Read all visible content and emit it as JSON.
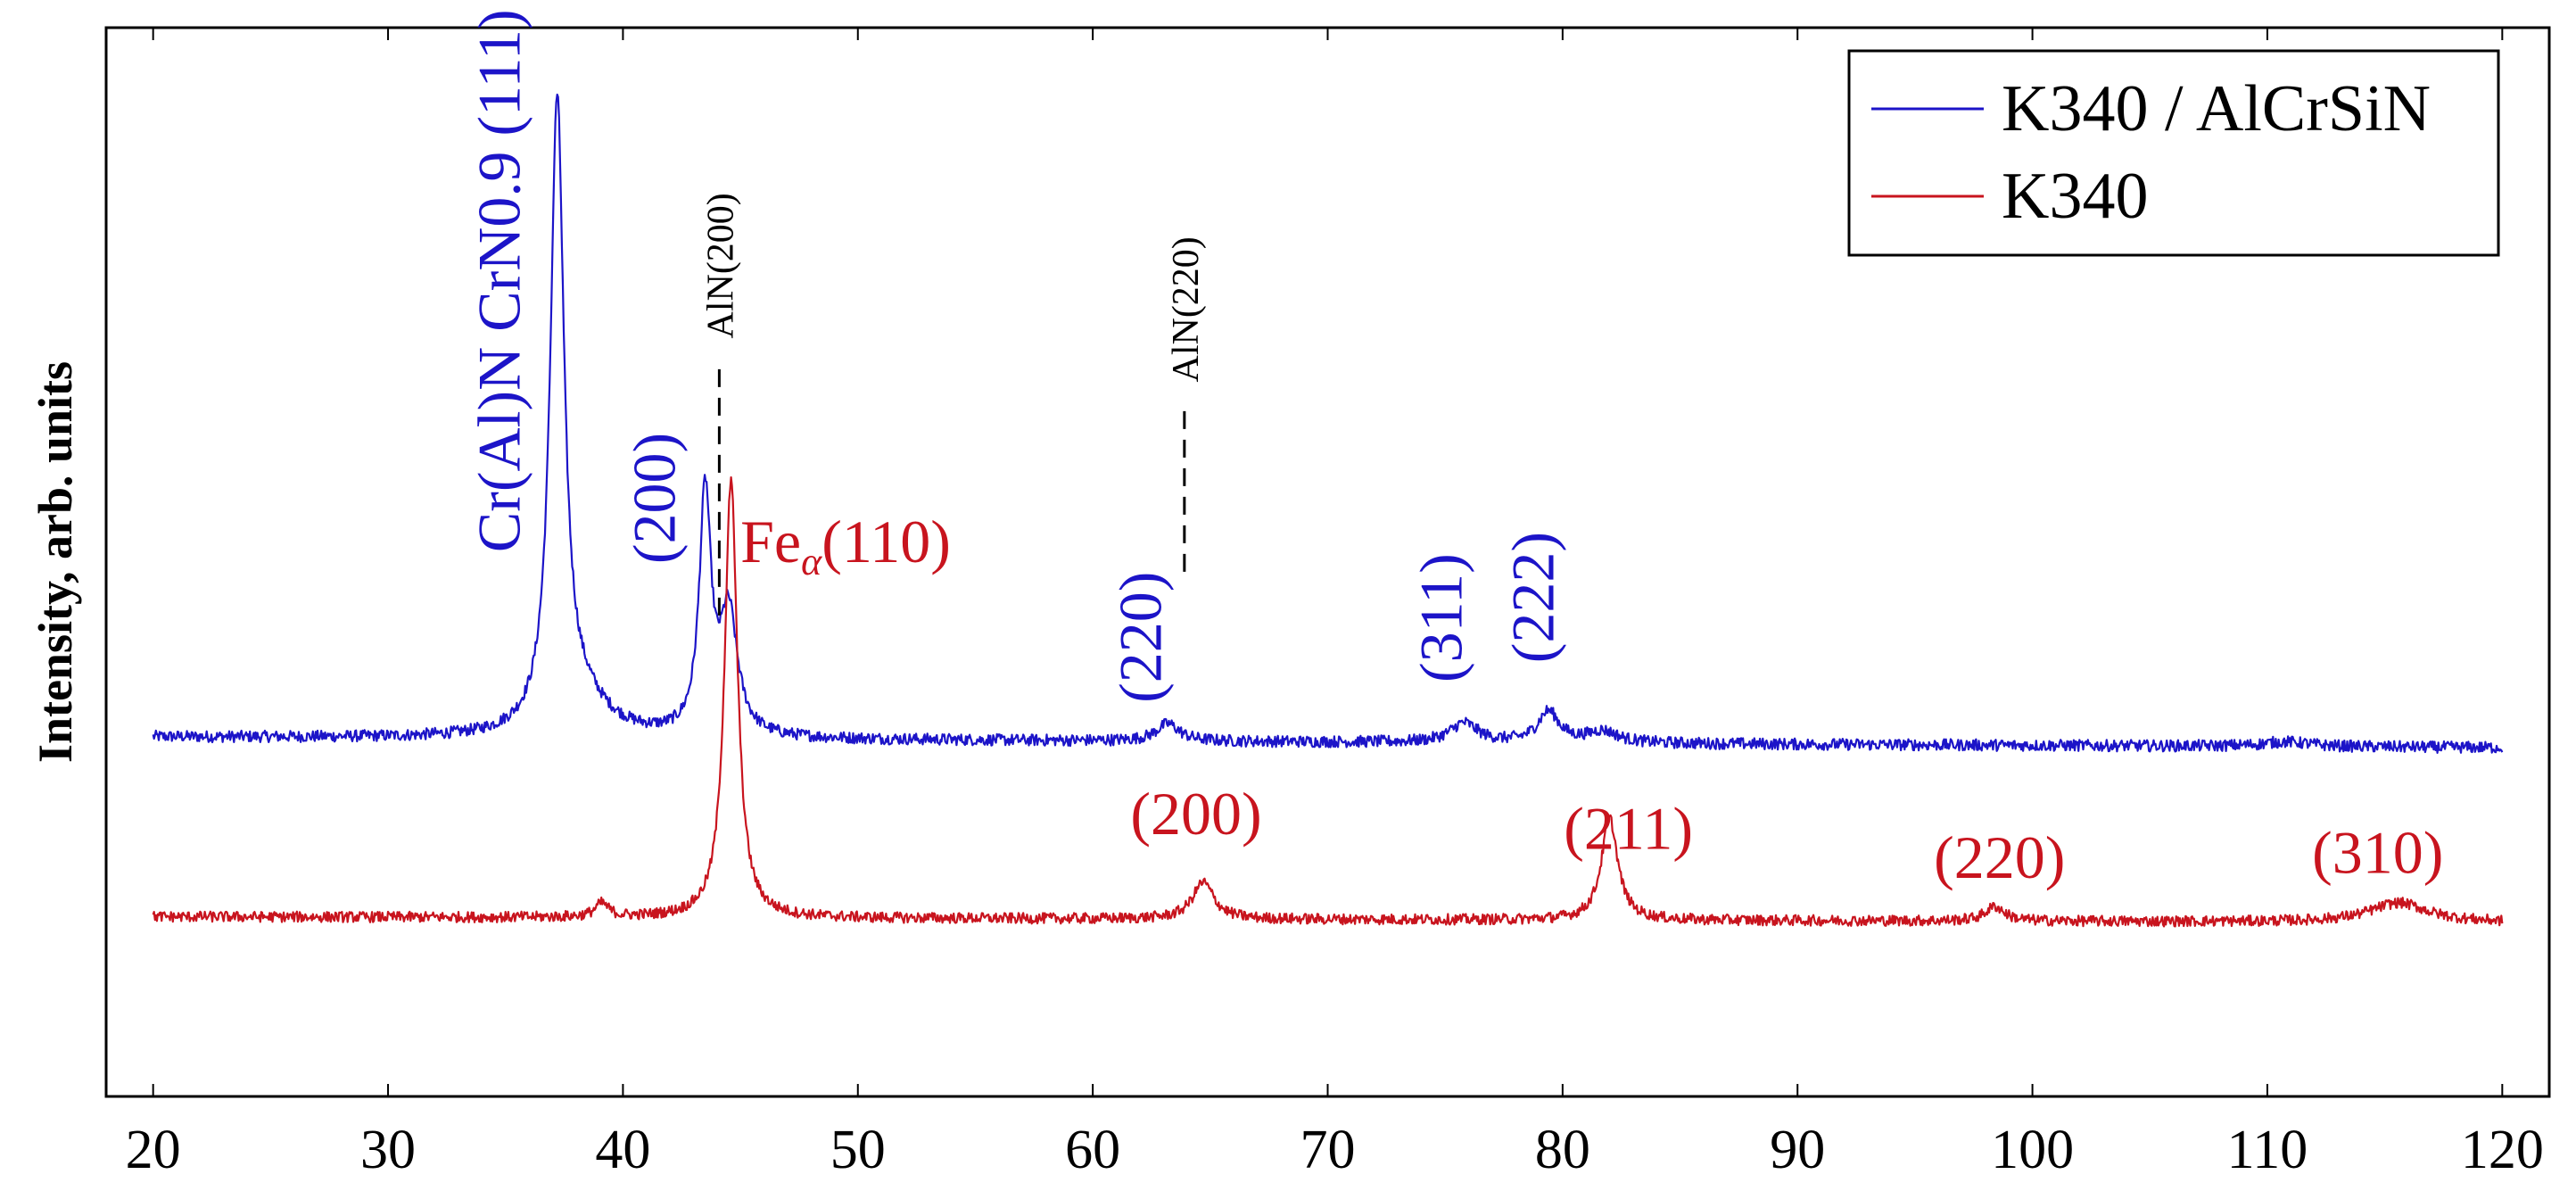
{
  "colors": {
    "coated": "#1c14c8",
    "substrate": "#c8141e",
    "axis": "#000000"
  },
  "chart_data": {
    "type": "line",
    "title": "",
    "xlabel": "",
    "ylabel": "Intensity, arb. units",
    "xlim": [
      18,
      122
    ],
    "ylim": [
      -0.6,
      10.4
    ],
    "x_ticks": [
      "20",
      "30",
      "40",
      "50",
      "60",
      "70",
      "80",
      "90",
      "100",
      "110",
      "120"
    ],
    "grid": false,
    "legend_position": "top-right",
    "series": [
      {
        "name": "K340 / AlCrSiN",
        "legend_label": "K340 / AlCrSiN",
        "color": "#1c14c8",
        "baseline": 3.1,
        "noise": 0.06,
        "baseline_slope": -0.0011,
        "peaks": [
          {
            "x": 37.2,
            "height": 6.4,
            "width": 0.35
          },
          {
            "x": 38.2,
            "height": 0.35,
            "width": 1.4
          },
          {
            "x": 43.5,
            "height": 2.45,
            "width": 0.3
          },
          {
            "x": 44.5,
            "height": 1.25,
            "width": 0.45
          },
          {
            "x": 63.2,
            "height": 0.18,
            "width": 0.6
          },
          {
            "x": 75.8,
            "height": 0.2,
            "width": 0.7
          },
          {
            "x": 79.4,
            "height": 0.32,
            "width": 0.55
          },
          {
            "x": 81.7,
            "height": 0.12,
            "width": 0.8
          },
          {
            "x": 110.8,
            "height": 0.05,
            "width": 1.2
          }
        ]
      },
      {
        "name": "K340",
        "legend_label": "K340",
        "color": "#c8141e",
        "baseline": 1.25,
        "noise": 0.055,
        "baseline_slope": -0.0006,
        "peaks": [
          {
            "x": 44.6,
            "height": 4.5,
            "width": 0.33
          },
          {
            "x": 39.1,
            "height": 0.14,
            "width": 0.35
          },
          {
            "x": 64.7,
            "height": 0.38,
            "width": 0.55
          },
          {
            "x": 82.0,
            "height": 1.05,
            "width": 0.42
          },
          {
            "x": 98.4,
            "height": 0.15,
            "width": 0.5
          },
          {
            "x": 115.6,
            "height": 0.2,
            "width": 1.5
          }
        ]
      }
    ],
    "annotations": {
      "coated": [
        {
          "id": "crn-111",
          "text": "Cr(Al)N CrN0.9 (111)",
          "x": 35.6,
          "y": 5.0,
          "rotate": -90
        },
        {
          "id": "crn-200",
          "text": "(200)",
          "x": 42.2,
          "y": 4.88,
          "rotate": -90
        },
        {
          "id": "crn-220",
          "text": "(220)",
          "x": 62.9,
          "y": 3.45,
          "rotate": -90
        },
        {
          "id": "crn-311",
          "text": "(311)",
          "x": 75.7,
          "y": 3.66,
          "rotate": -90
        },
        {
          "id": "crn-222",
          "text": "(222)",
          "x": 79.6,
          "y": 3.86,
          "rotate": -90
        }
      ],
      "substrate": [
        {
          "id": "fe-110",
          "text": "Fe",
          "subscript": "α",
          "suffix": "(110)",
          "x": 45.0,
          "y": 4.9
        },
        {
          "id": "fe-200",
          "text": "(200)",
          "x": 64.4,
          "y": 2.1
        },
        {
          "id": "fe-211",
          "text": "(211)",
          "x": 82.8,
          "y": 1.95
        },
        {
          "id": "fe-220",
          "text": "(220)",
          "x": 98.6,
          "y": 1.65
        },
        {
          "id": "fe-310",
          "text": "(310)",
          "x": 114.7,
          "y": 1.7
        }
      ],
      "aln": [
        {
          "id": "aln-200",
          "text": "AlN(200)",
          "x": 44.1,
          "line_from": 4.35,
          "line_to": 6.95,
          "text_y": 7.2
        },
        {
          "id": "aln-220",
          "text": "AlN(220)",
          "x": 63.9,
          "line_from": 4.8,
          "line_to": 6.55,
          "text_y": 6.75
        }
      ]
    }
  }
}
